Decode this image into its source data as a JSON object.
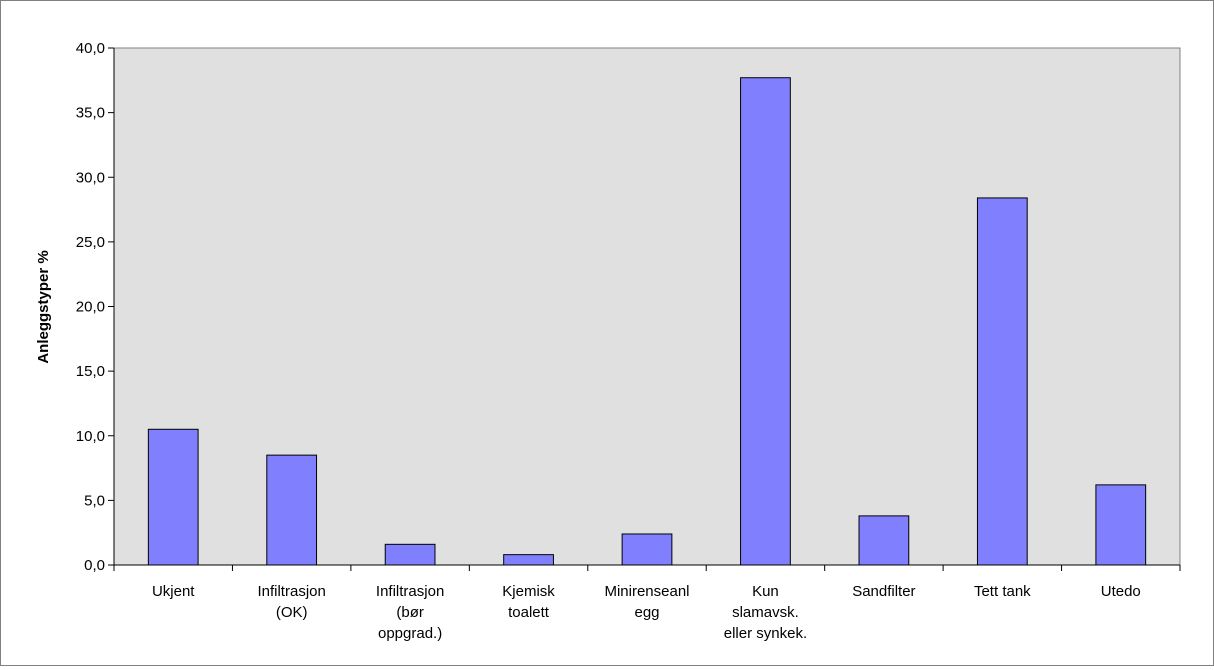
{
  "chart_data": {
    "type": "bar",
    "title": "",
    "xlabel": "",
    "ylabel": "Anleggstyper %",
    "ylim": [
      0,
      40
    ],
    "yticks": [
      "0,0",
      "5,0",
      "10,0",
      "15,0",
      "20,0",
      "25,0",
      "30,0",
      "35,0",
      "40,0"
    ],
    "categories": [
      [
        "Ukjent"
      ],
      [
        "Infiltrasjon",
        "(OK)"
      ],
      [
        "Infiltrasjon",
        "(bør",
        "oppgrad.)"
      ],
      [
        "Kjemisk",
        "toalett"
      ],
      [
        "Minirenseanl",
        "egg"
      ],
      [
        "Kun",
        "slamavsk.",
        "eller synkek."
      ],
      [
        "Sandfilter"
      ],
      [
        "Tett tank"
      ],
      [
        "Utedo"
      ]
    ],
    "values": [
      10.5,
      8.5,
      1.6,
      0.8,
      2.4,
      37.7,
      3.8,
      28.4,
      6.2
    ],
    "grid": false,
    "legend": "none",
    "colors": {
      "bar": "#8080ff",
      "plot_background": "#e0e0e0",
      "outline": "#000000"
    }
  }
}
